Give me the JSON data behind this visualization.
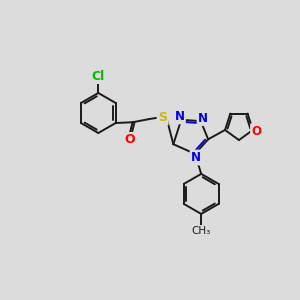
{
  "background_color": "#dcdcdc",
  "bond_color": "#1a1a1a",
  "atom_colors": {
    "Cl": "#00bb00",
    "O": "#ff0000",
    "S": "#ccbb00",
    "N": "#0000ee"
  },
  "figsize": [
    3.0,
    3.0
  ],
  "dpi": 100
}
